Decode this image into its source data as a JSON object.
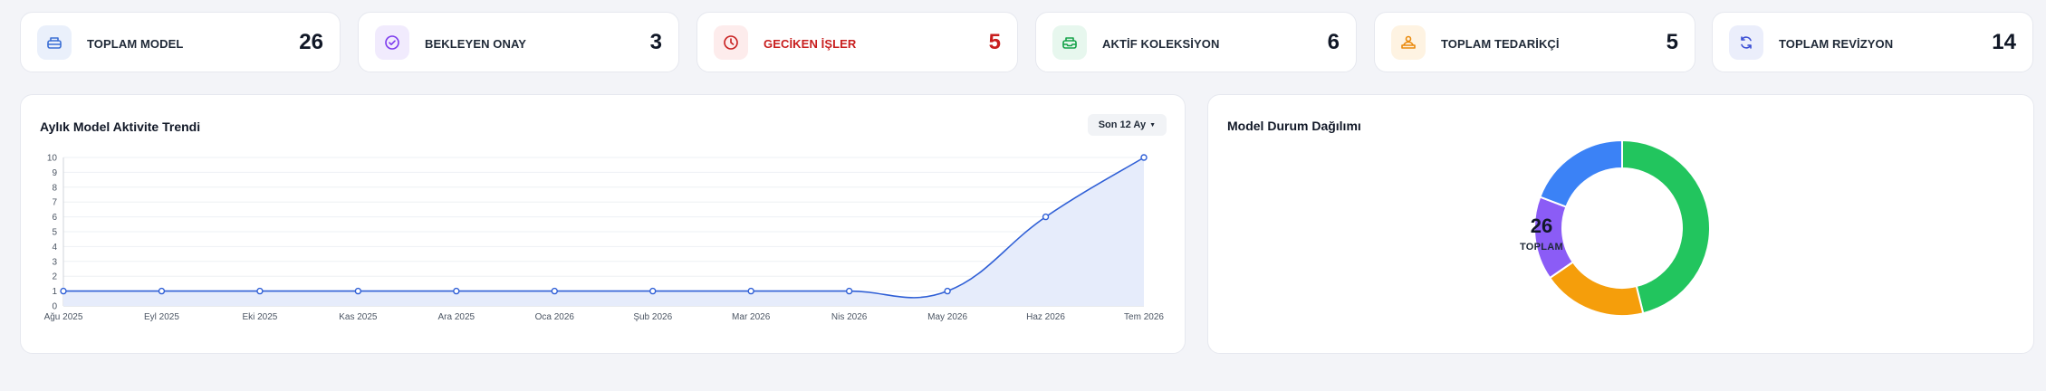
{
  "stats": [
    {
      "label": "TOPLAM MODEL",
      "value": "26",
      "icon": "package-icon",
      "color": "#3b6fd4",
      "bg": "#eaf0fb"
    },
    {
      "label": "BEKLEYEN ONAY",
      "value": "3",
      "icon": "check-circle-icon",
      "color": "#7c3aed",
      "bg": "#f1ebfd"
    },
    {
      "label": "GECİKEN İŞLER",
      "value": "5",
      "icon": "clock-icon",
      "color": "#c81e1e",
      "bg": "#fdecec"
    },
    {
      "label": "AKTİF KOLEKSİYON",
      "value": "6",
      "icon": "inbox-icon",
      "color": "#16a34a",
      "bg": "#e7f7ee"
    },
    {
      "label": "TOPLAM TEDARİKÇİ",
      "value": "5",
      "icon": "user-desk-icon",
      "color": "#ea8a0c",
      "bg": "#fef3e2"
    },
    {
      "label": "TOPLAM REVİZYON",
      "value": "14",
      "icon": "refresh-icon",
      "color": "#3b4fd4",
      "bg": "#ebeefb"
    }
  ],
  "trend": {
    "title": "Aylık Model Aktivite Trendi",
    "range_label": "Son 12 Ay"
  },
  "distribution": {
    "title": "Model Durum Dağılımı",
    "total": "26",
    "total_label": "TOPLAM"
  },
  "chart_data": [
    {
      "type": "area",
      "title": "Aylık Model Aktivite Trendi",
      "categories": [
        "Ağu 2025",
        "Eyl 2025",
        "Eki 2025",
        "Kas 2025",
        "Ara 2025",
        "Oca 2026",
        "Şub 2026",
        "Mar 2026",
        "Nis 2026",
        "May 2026",
        "Haz 2026",
        "Tem 2026"
      ],
      "values": [
        1,
        1,
        1,
        1,
        1,
        1,
        1,
        1,
        1,
        1,
        6,
        10
      ],
      "ylim": [
        0,
        10
      ],
      "yticks": [
        0,
        1,
        2,
        3,
        4,
        5,
        6,
        7,
        8,
        9,
        10
      ],
      "grid": true,
      "line_color": "#2f5fd6",
      "fill_color": "#e6ecfb"
    },
    {
      "type": "pie",
      "title": "Model Durum Dağılımı",
      "values": [
        12,
        5,
        4,
        5
      ],
      "colors": [
        "#22c55e",
        "#f59e0b",
        "#8b5cf6",
        "#3b82f6"
      ],
      "donut": true
    }
  ]
}
